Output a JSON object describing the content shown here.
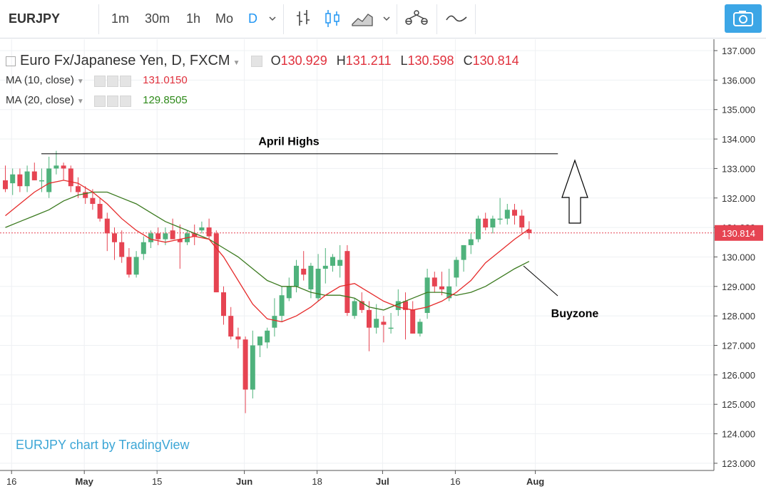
{
  "toolbar": {
    "symbol": "EURJPY",
    "intervals": [
      "1m",
      "30m",
      "1h",
      "Mo",
      "D"
    ],
    "active_interval": "D",
    "icons": [
      "chevron-down-icon",
      "bar-chart-icon",
      "candle-chart-icon",
      "area-chart-icon",
      "chevron-down-icon",
      "indicators-icon",
      "compare-icon",
      "camera-icon"
    ]
  },
  "legend": {
    "title": "Euro Fx/Japanese Yen, D, FXCM",
    "o_label": "O",
    "o_value": "130.929",
    "h_label": "H",
    "h_value": "131.211",
    "l_label": "L",
    "l_value": "130.598",
    "c_label": "C",
    "c_value": "130.814",
    "ma10_label": "MA (10, close)",
    "ma10_value": "131.0150",
    "ma20_label": "MA (20, close)",
    "ma20_value": "129.8505"
  },
  "attribution": "EURJPY chart by TradingView",
  "colors": {
    "up": "#4fb27c",
    "down": "#e64452",
    "ma10": "#e62b2b",
    "ma20": "#3b7a1f",
    "accent": "#3ca6e6"
  },
  "chart_data": {
    "type": "candlestick",
    "y_ticks": [
      "137.000",
      "136.000",
      "135.000",
      "134.000",
      "133.000",
      "132.000",
      "131.000",
      "130.000",
      "129.000",
      "128.000",
      "127.000",
      "126.000",
      "125.000",
      "124.000",
      "123.000"
    ],
    "ylim": [
      123,
      137.2
    ],
    "x_ticks": [
      {
        "label": "16",
        "x": 1,
        "bold": false
      },
      {
        "label": "May",
        "x": 11,
        "bold": true
      },
      {
        "label": "15",
        "x": 21,
        "bold": false
      },
      {
        "label": "Jun",
        "x": 33,
        "bold": true
      },
      {
        "label": "18",
        "x": 43,
        "bold": false
      },
      {
        "label": "Jul",
        "x": 52,
        "bold": true
      },
      {
        "label": "16",
        "x": 62,
        "bold": false
      },
      {
        "label": "Aug",
        "x": 73,
        "bold": true
      }
    ],
    "last_price": "130.814",
    "candles": [
      [
        132.6,
        133.1,
        132.2,
        132.3
      ],
      [
        132.5,
        133.0,
        132.1,
        132.8
      ],
      [
        132.8,
        133.0,
        132.2,
        132.4
      ],
      [
        132.4,
        133.1,
        132.2,
        132.9
      ],
      [
        132.9,
        133.2,
        132.6,
        132.6
      ],
      [
        132.6,
        133.0,
        132.2,
        132.6
      ],
      [
        132.2,
        133.4,
        132.0,
        133.0
      ],
      [
        133.0,
        133.6,
        132.8,
        133.1
      ],
      [
        133.1,
        133.2,
        132.6,
        133.0
      ],
      [
        133.0,
        133.1,
        132.2,
        132.4
      ],
      [
        132.4,
        132.7,
        132.0,
        132.2
      ],
      [
        132.2,
        132.4,
        131.8,
        132.0
      ],
      [
        132.0,
        132.3,
        131.6,
        131.8
      ],
      [
        131.8,
        132.0,
        131.2,
        131.3
      ],
      [
        131.3,
        131.5,
        130.2,
        130.8
      ],
      [
        130.8,
        131.0,
        129.9,
        130.5
      ],
      [
        130.5,
        130.9,
        129.8,
        130.0
      ],
      [
        130.0,
        130.3,
        129.3,
        129.4
      ],
      [
        129.4,
        130.2,
        129.3,
        130.0
      ],
      [
        130.1,
        130.7,
        129.9,
        130.5
      ],
      [
        130.5,
        130.9,
        130.3,
        130.8
      ],
      [
        130.8,
        131.0,
        130.4,
        130.6
      ],
      [
        130.6,
        131.0,
        130.4,
        130.8
      ],
      [
        130.9,
        131.3,
        130.6,
        130.6
      ],
      [
        130.6,
        131.1,
        129.6,
        130.5
      ],
      [
        130.5,
        130.9,
        130.4,
        130.8
      ],
      [
        130.8,
        131.1,
        130.4,
        130.7
      ],
      [
        130.9,
        131.2,
        130.8,
        131.0
      ],
      [
        131.0,
        131.3,
        130.6,
        130.7
      ],
      [
        130.8,
        130.9,
        128.8,
        128.8
      ],
      [
        128.8,
        129.0,
        127.7,
        128.0
      ],
      [
        128.0,
        128.3,
        127.2,
        127.3
      ],
      [
        127.3,
        127.6,
        126.9,
        127.2
      ],
      [
        127.2,
        127.3,
        124.7,
        125.5
      ],
      [
        125.5,
        127.5,
        125.2,
        127.0
      ],
      [
        127.0,
        127.2,
        126.6,
        127.3
      ],
      [
        127.1,
        127.6,
        126.9,
        127.5
      ],
      [
        127.6,
        128.6,
        127.3,
        128.0
      ],
      [
        128.0,
        129.0,
        127.8,
        128.7
      ],
      [
        128.6,
        129.3,
        128.5,
        129.0
      ],
      [
        129.0,
        129.9,
        128.8,
        129.7
      ],
      [
        129.6,
        130.2,
        129.2,
        129.4
      ],
      [
        128.9,
        129.8,
        128.6,
        129.7
      ],
      [
        128.6,
        130.1,
        128.5,
        129.6
      ],
      [
        129.6,
        130.3,
        129.1,
        129.7
      ],
      [
        129.7,
        130.1,
        129.5,
        130.0
      ],
      [
        129.7,
        130.4,
        129.3,
        129.9
      ],
      [
        130.2,
        130.4,
        128.0,
        128.1
      ],
      [
        128.0,
        128.6,
        127.9,
        128.5
      ],
      [
        128.5,
        128.8,
        128.1,
        128.2
      ],
      [
        128.2,
        128.5,
        126.8,
        127.6
      ],
      [
        127.6,
        128.4,
        127.4,
        127.9
      ],
      [
        127.8,
        128.0,
        127.1,
        127.7
      ],
      [
        127.6,
        128.1,
        127.4,
        127.6
      ],
      [
        128.2,
        128.9,
        128.0,
        128.5
      ],
      [
        128.5,
        128.8,
        127.2,
        128.2
      ],
      [
        128.2,
        128.5,
        127.4,
        127.4
      ],
      [
        127.4,
        127.9,
        127.3,
        127.8
      ],
      [
        128.1,
        129.6,
        127.9,
        129.3
      ],
      [
        129.3,
        129.5,
        128.8,
        129.0
      ],
      [
        129.0,
        129.5,
        128.7,
        128.9
      ],
      [
        128.6,
        129.6,
        128.5,
        129.0
      ],
      [
        129.3,
        130.0,
        129.0,
        129.9
      ],
      [
        129.9,
        130.4,
        129.5,
        130.4
      ],
      [
        130.4,
        130.8,
        130.1,
        130.6
      ],
      [
        130.6,
        131.4,
        130.5,
        131.3
      ],
      [
        131.3,
        131.5,
        130.9,
        131.0
      ],
      [
        131.0,
        131.4,
        130.8,
        131.3
      ],
      [
        131.3,
        132.0,
        131.1,
        131.3
      ],
      [
        131.3,
        131.8,
        131.1,
        131.6
      ],
      [
        131.6,
        131.8,
        131.1,
        131.4
      ],
      [
        131.4,
        131.6,
        130.8,
        131.0
      ],
      [
        130.93,
        131.21,
        130.6,
        130.81
      ]
    ],
    "ma10": [
      [
        0,
        131.4
      ],
      [
        2,
        131.8
      ],
      [
        4,
        132.2
      ],
      [
        6,
        132.5
      ],
      [
        8,
        132.6
      ],
      [
        10,
        132.5
      ],
      [
        12,
        132.2
      ],
      [
        14,
        131.8
      ],
      [
        16,
        131.3
      ],
      [
        18,
        130.9
      ],
      [
        20,
        130.6
      ],
      [
        22,
        130.5
      ],
      [
        24,
        130.6
      ],
      [
        26,
        130.7
      ],
      [
        28,
        130.6
      ],
      [
        30,
        130.0
      ],
      [
        32,
        129.2
      ],
      [
        34,
        128.4
      ],
      [
        36,
        127.9
      ],
      [
        38,
        127.8
      ],
      [
        40,
        128.0
      ],
      [
        42,
        128.3
      ],
      [
        44,
        128.7
      ],
      [
        46,
        129.0
      ],
      [
        48,
        129.1
      ],
      [
        50,
        128.8
      ],
      [
        52,
        128.5
      ],
      [
        54,
        128.3
      ],
      [
        56,
        128.2
      ],
      [
        58,
        128.3
      ],
      [
        60,
        128.5
      ],
      [
        62,
        128.8
      ],
      [
        64,
        129.2
      ],
      [
        66,
        129.8
      ],
      [
        68,
        130.2
      ],
      [
        70,
        130.6
      ],
      [
        72,
        130.95
      ]
    ],
    "ma20": [
      [
        0,
        131.0
      ],
      [
        2,
        131.2
      ],
      [
        4,
        131.4
      ],
      [
        6,
        131.6
      ],
      [
        8,
        131.9
      ],
      [
        10,
        132.1
      ],
      [
        12,
        132.2
      ],
      [
        14,
        132.2
      ],
      [
        16,
        132.0
      ],
      [
        18,
        131.8
      ],
      [
        20,
        131.5
      ],
      [
        22,
        131.2
      ],
      [
        24,
        131.0
      ],
      [
        26,
        130.8
      ],
      [
        28,
        130.6
      ],
      [
        30,
        130.3
      ],
      [
        32,
        130.0
      ],
      [
        34,
        129.6
      ],
      [
        36,
        129.2
      ],
      [
        38,
        129.0
      ],
      [
        40,
        129.0
      ],
      [
        42,
        128.8
      ],
      [
        44,
        128.7
      ],
      [
        46,
        128.7
      ],
      [
        48,
        128.6
      ],
      [
        50,
        128.3
      ],
      [
        52,
        128.2
      ],
      [
        54,
        128.4
      ],
      [
        56,
        128.6
      ],
      [
        58,
        128.8
      ],
      [
        60,
        128.8
      ],
      [
        62,
        128.7
      ],
      [
        64,
        128.8
      ],
      [
        66,
        129.0
      ],
      [
        68,
        129.3
      ],
      [
        70,
        129.6
      ],
      [
        72,
        129.85
      ]
    ],
    "annotations": {
      "april_highs_label": "April Highs",
      "april_highs_level": 133.5,
      "april_highs_x": [
        5,
        76
      ],
      "buyzone_label": "Buyzone"
    }
  }
}
